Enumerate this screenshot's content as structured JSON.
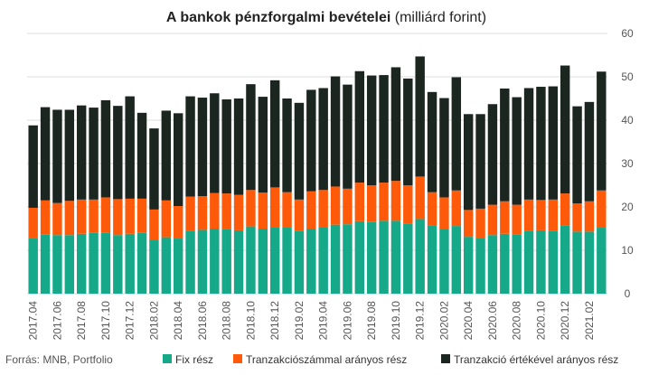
{
  "chart_data": {
    "type": "bar",
    "stacked": true,
    "title_bold": "A bankok pénzforgalmi bevételei",
    "title_rest": "(milliárd forint)",
    "xlabel": "",
    "ylabel": "",
    "ylim": [
      0,
      60
    ],
    "yticks": [
      0,
      10,
      20,
      30,
      40,
      50,
      60
    ],
    "y_axis_side": "right",
    "grid": true,
    "legend_position": "bottom",
    "source": "Forrás: MNB, Portfolio",
    "categories": [
      "2017.04",
      "2017.05",
      "2017.06",
      "2017.07",
      "2017.08",
      "2017.09",
      "2017.10",
      "2017.11",
      "2017.12",
      "2018.01",
      "2018.02",
      "2018.03",
      "2018.04",
      "2018.05",
      "2018.06",
      "2018.07",
      "2018.08",
      "2018.09",
      "2018.10",
      "2018.11",
      "2018.12",
      "2019.01",
      "2019.02",
      "2019.03",
      "2019.04",
      "2019.05",
      "2019.06",
      "2019.07",
      "2019.08",
      "2019.09",
      "2019.10",
      "2019.11",
      "2019.12",
      "2020.01",
      "2020.02",
      "2020.03",
      "2020.04",
      "2020.05",
      "2020.06",
      "2020.07",
      "2020.08",
      "2020.09",
      "2020.10",
      "2020.11",
      "2020.12",
      "2021.01",
      "2021.02",
      "2021.03"
    ],
    "tick_labels": [
      "2017.04",
      "2017.06",
      "2017.08",
      "2017.10",
      "2017.12",
      "2018.02",
      "2018.04",
      "2018.06",
      "2018.08",
      "2018.10",
      "2018.12",
      "2019.02",
      "2019.04",
      "2019.06",
      "2019.08",
      "2019.10",
      "2019.12",
      "2020.02",
      "2020.04",
      "2020.06",
      "2020.08",
      "2020.10",
      "2020.12",
      "2021.02"
    ],
    "series": [
      {
        "name": "Fix rész",
        "color": "#15a98a",
        "values": [
          12.8,
          13.6,
          13.5,
          13.5,
          13.8,
          14.0,
          14.0,
          13.5,
          13.8,
          14.0,
          12.4,
          13.0,
          12.7,
          14.5,
          14.7,
          15.0,
          14.8,
          14.6,
          15.5,
          15.0,
          15.4,
          15.4,
          14.4,
          15.0,
          15.4,
          15.9,
          16.0,
          16.7,
          16.5,
          16.8,
          16.8,
          16.2,
          17.2,
          15.8,
          14.9,
          15.6,
          13.1,
          12.9,
          13.5,
          13.8,
          13.7,
          14.5,
          14.6,
          14.4,
          15.7,
          14.3,
          14.3,
          15.2
        ]
      },
      {
        "name": "Tranzakciószámmal arányos rész",
        "color": "#ff5a0a",
        "values": [
          7.0,
          7.9,
          7.4,
          7.9,
          7.9,
          7.7,
          8.2,
          8.3,
          8.1,
          7.9,
          7.0,
          8.5,
          7.5,
          7.9,
          7.8,
          8.2,
          8.3,
          8.2,
          8.4,
          8.3,
          9.1,
          8.0,
          7.3,
          8.6,
          8.5,
          8.8,
          8.2,
          8.9,
          8.5,
          8.8,
          9.2,
          8.8,
          9.8,
          7.6,
          7.3,
          8.2,
          6.2,
          6.7,
          7.0,
          7.5,
          6.8,
          7.2,
          7.0,
          7.3,
          7.4,
          6.5,
          7.0,
          8.6
        ]
      },
      {
        "name": "Tranzakció értékével arányos rész",
        "color": "#1c2621",
        "values": [
          19.0,
          21.5,
          21.5,
          21.0,
          21.7,
          21.2,
          22.4,
          21.5,
          23.6,
          19.8,
          18.7,
          20.7,
          21.4,
          23.1,
          22.7,
          23.0,
          21.7,
          22.2,
          24.4,
          22.1,
          24.7,
          21.6,
          22.3,
          23.4,
          23.5,
          25.4,
          24.0,
          25.7,
          25.3,
          24.8,
          26.2,
          24.6,
          27.7,
          23.1,
          22.9,
          26.1,
          22.1,
          21.8,
          23.2,
          26.0,
          24.8,
          25.7,
          26.1,
          26.1,
          29.5,
          22.4,
          22.9,
          27.4
        ]
      }
    ]
  }
}
